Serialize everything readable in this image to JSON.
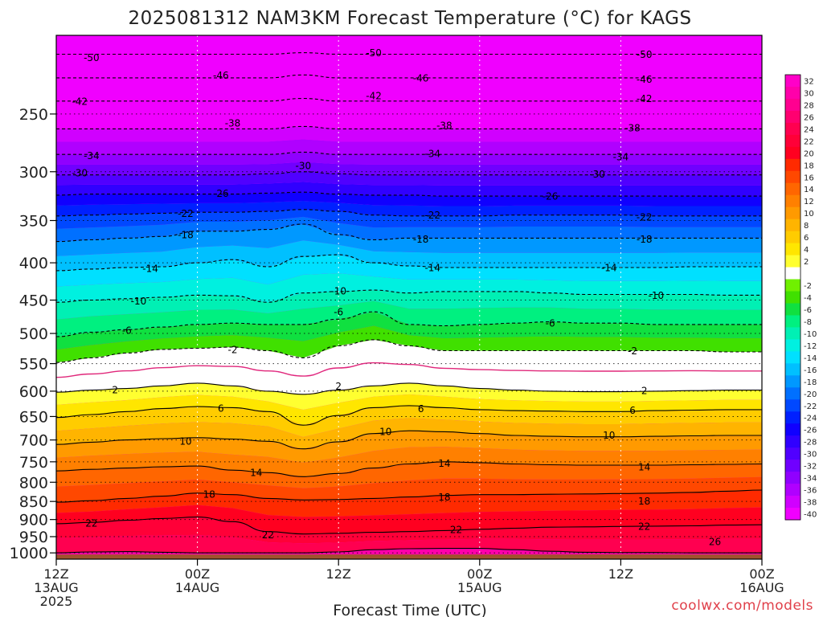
{
  "credit": "coolwx.com/models",
  "colors": {
    "ground": "#a0522d",
    "freezing_line": "#e0287a",
    "scale": [
      {
        "label": "32",
        "color": "#ff00c8"
      },
      {
        "label": "30",
        "color": "#ff00aa"
      },
      {
        "label": "28",
        "color": "#ff0090"
      },
      {
        "label": "26",
        "color": "#ff0070"
      },
      {
        "label": "24",
        "color": "#ff0050"
      },
      {
        "label": "22",
        "color": "#ff0038"
      },
      {
        "label": "20",
        "color": "#ff0020"
      },
      {
        "label": "18",
        "color": "#ff2a00"
      },
      {
        "label": "16",
        "color": "#ff4800"
      },
      {
        "label": "14",
        "color": "#ff6600"
      },
      {
        "label": "12",
        "color": "#ff8000"
      },
      {
        "label": "10",
        "color": "#ff9a00"
      },
      {
        "label": "8",
        "color": "#ffb400"
      },
      {
        "label": "6",
        "color": "#ffcc00"
      },
      {
        "label": "4",
        "color": "#ffe600"
      },
      {
        "label": "2",
        "color": "#ffff30"
      },
      {
        "label": "",
        "color": "#ffffff"
      },
      {
        "label": "-2",
        "color": "#70f000"
      },
      {
        "label": "-4",
        "color": "#40e000"
      },
      {
        "label": "-6",
        "color": "#10e040"
      },
      {
        "label": "-8",
        "color": "#00f080"
      },
      {
        "label": "-10",
        "color": "#00f0b4"
      },
      {
        "label": "-12",
        "color": "#00f0e0"
      },
      {
        "label": "-14",
        "color": "#00e0ff"
      },
      {
        "label": "-16",
        "color": "#00c0ff"
      },
      {
        "label": "-18",
        "color": "#0098ff"
      },
      {
        "label": "-20",
        "color": "#0070ff"
      },
      {
        "label": "-22",
        "color": "#0048ff"
      },
      {
        "label": "-24",
        "color": "#0020ff"
      },
      {
        "label": "-26",
        "color": "#1000ff"
      },
      {
        "label": "-28",
        "color": "#3000ff"
      },
      {
        "label": "-30",
        "color": "#5000ff"
      },
      {
        "label": "-32",
        "color": "#7000ff"
      },
      {
        "label": "-34",
        "color": "#9000ff"
      },
      {
        "label": "-36",
        "color": "#b000ff"
      },
      {
        "label": "-38",
        "color": "#d000ff"
      },
      {
        "label": "-40",
        "color": "#f000ff"
      }
    ]
  },
  "chart_data": {
    "type": "heatmap",
    "title": "2025081312 NAM3KM Forecast Temperature (°C) for KAGS",
    "xlabel": "Forecast Time (UTC)",
    "ylabel": "",
    "x_ticks": [
      {
        "hour": 0,
        "labels": [
          "12Z",
          "13AUG",
          "2025"
        ]
      },
      {
        "hour": 12,
        "labels": [
          "00Z",
          "14AUG"
        ]
      },
      {
        "hour": 24,
        "labels": [
          "12Z"
        ]
      },
      {
        "hour": 36,
        "labels": [
          "00Z",
          "15AUG"
        ]
      },
      {
        "hour": 48,
        "labels": [
          "12Z"
        ]
      },
      {
        "hour": 60,
        "labels": [
          "00Z",
          "16AUG"
        ]
      }
    ],
    "xlim_hours": [
      0,
      60
    ],
    "y_ticks": [
      1000,
      950,
      900,
      850,
      800,
      750,
      700,
      650,
      600,
      550,
      500,
      450,
      400,
      350,
      300,
      250
    ],
    "ylim_hpa": [
      1020,
      195
    ],
    "y_scale": "log-pressure",
    "colorbar_unit": "°C",
    "isotherms": [
      {
        "value": 26,
        "label": "26",
        "p": [
          1000,
          997,
          996,
          998,
          1000,
          1000,
          1000,
          1000,
          997,
          990,
          987,
          986,
          986,
          990,
          995,
          998,
          999,
          999,
          1000,
          1000,
          1000
        ],
        "labels_at": [
          [
            56,
            965
          ]
        ]
      },
      {
        "value": 22,
        "label": "22",
        "p": [
          912,
          908,
          902,
          897,
          893,
          906,
          935,
          942,
          940,
          937,
          935,
          932,
          928,
          925,
          922,
          921,
          920,
          919,
          918,
          916,
          915
        ],
        "labels_at": [
          [
            3,
            910
          ],
          [
            18,
            944
          ],
          [
            34,
            928
          ],
          [
            50,
            919
          ]
        ]
      },
      {
        "value": 18,
        "label": "18",
        "p": [
          852,
          848,
          842,
          836,
          828,
          832,
          842,
          846,
          845,
          842,
          838,
          834,
          832,
          832,
          831,
          830,
          829,
          828,
          826,
          823,
          820
        ],
        "labels_at": [
          [
            13,
            831
          ],
          [
            33,
            838
          ],
          [
            50,
            849
          ]
        ]
      },
      {
        "value": 14,
        "label": "14",
        "p": [
          772,
          768,
          765,
          762,
          760,
          770,
          776,
          786,
          778,
          765,
          755,
          750,
          752,
          755,
          757,
          758,
          758,
          758,
          757,
          756,
          755
        ],
        "labels_at": [
          [
            17,
            775
          ],
          [
            33,
            753
          ],
          [
            50,
            762
          ]
        ]
      },
      {
        "value": 10,
        "label": "10",
        "p": [
          710,
          705,
          700,
          697,
          695,
          698,
          703,
          720,
          704,
          686,
          680,
          682,
          686,
          690,
          692,
          693,
          693,
          692,
          691,
          690,
          690
        ],
        "labels_at": [
          [
            11,
            702
          ],
          [
            28,
            681
          ],
          [
            47,
            689
          ]
        ]
      },
      {
        "value": 6,
        "label": "6",
        "p": [
          652,
          646,
          640,
          634,
          630,
          632,
          640,
          668,
          648,
          632,
          628,
          632,
          636,
          638,
          639,
          640,
          640,
          638,
          637,
          636,
          636
        ],
        "labels_at": [
          [
            14,
            633
          ],
          [
            31,
            634
          ],
          [
            49,
            637
          ]
        ]
      },
      {
        "value": 2,
        "label": "2",
        "p": [
          602,
          598,
          595,
          590,
          585,
          590,
          600,
          606,
          598,
          590,
          585,
          590,
          595,
          598,
          600,
          601,
          601,
          600,
          599,
          598,
          598
        ],
        "labels_at": [
          [
            5,
            597
          ],
          [
            24,
            590
          ],
          [
            50,
            599
          ]
        ]
      },
      {
        "value": -2,
        "label": "-2",
        "p": [
          548,
          540,
          532,
          526,
          524,
          522,
          528,
          540,
          520,
          510,
          520,
          528,
          528,
          528,
          528,
          528,
          528,
          528,
          528,
          530,
          530
        ],
        "labels_at": [
          [
            15,
            526
          ],
          [
            49,
            528
          ]
        ]
      },
      {
        "value": -6,
        "label": "-6",
        "p": [
          505,
          498,
          494,
          490,
          486,
          484,
          486,
          486,
          478,
          467,
          486,
          488,
          486,
          484,
          482,
          484,
          484,
          486,
          486,
          486,
          486
        ],
        "labels_at": [
          [
            6,
            495
          ],
          [
            24,
            467
          ],
          [
            42,
            484
          ]
        ]
      },
      {
        "value": -10,
        "label": "-10",
        "p": [
          453,
          450,
          448,
          446,
          443,
          444,
          453,
          440,
          438,
          436,
          440,
          438,
          438,
          438,
          440,
          442,
          442,
          442,
          442,
          443,
          443
        ],
        "labels_at": [
          [
            7,
            451
          ],
          [
            24,
            437
          ],
          [
            51,
            443
          ]
        ]
      },
      {
        "value": -14,
        "label": "-14",
        "p": [
          410,
          408,
          406,
          405,
          400,
          396,
          405,
          392,
          390,
          400,
          404,
          406,
          406,
          406,
          406,
          406,
          406,
          406,
          405,
          405,
          405
        ],
        "labels_at": [
          [
            8,
            407
          ],
          [
            32,
            406
          ],
          [
            47,
            406
          ]
        ]
      },
      {
        "value": -18,
        "label": "-18",
        "p": [
          374,
          372,
          370,
          368,
          362,
          362,
          360,
          354,
          366,
          372,
          370,
          370,
          370,
          370,
          370,
          370,
          370,
          370,
          370,
          370,
          370
        ],
        "labels_at": [
          [
            11,
            366
          ],
          [
            31,
            371
          ],
          [
            50,
            371
          ]
        ]
      },
      {
        "value": -22,
        "label": "-22",
        "p": [
          345,
          344,
          343,
          342,
          341,
          341,
          340,
          338,
          340,
          344,
          345,
          345,
          345,
          344,
          344,
          344,
          344,
          345,
          345,
          345,
          345
        ],
        "labels_at": [
          [
            11,
            342
          ],
          [
            32,
            344
          ],
          [
            50,
            346
          ]
        ]
      },
      {
        "value": -26,
        "label": "-26",
        "p": [
          323,
          322,
          322,
          322,
          322,
          322,
          321,
          320,
          322,
          323,
          323,
          324,
          324,
          324,
          324,
          324,
          324,
          324,
          324,
          324,
          324
        ],
        "labels_at": [
          [
            14,
            321
          ],
          [
            42,
            324
          ]
        ]
      },
      {
        "value": -30,
        "label": "-30",
        "p": [
          303,
          303,
          303,
          303,
          303,
          303,
          302,
          300,
          302,
          303,
          303,
          303,
          303,
          303,
          303,
          303,
          303,
          303,
          303,
          303,
          303
        ],
        "labels_at": [
          [
            2,
            301
          ],
          [
            21,
            294
          ],
          [
            46,
            302
          ]
        ]
      },
      {
        "value": -34,
        "label": "-34",
        "p": [
          284,
          284,
          284,
          284,
          284,
          284,
          284,
          282,
          284,
          284,
          284,
          284,
          284,
          284,
          284,
          284,
          284,
          284,
          284,
          284,
          284
        ],
        "labels_at": [
          [
            3,
            285
          ],
          [
            32,
            283
          ],
          [
            48,
            286
          ]
        ]
      },
      {
        "value": -38,
        "label": "-38",
        "p": [
          262,
          262,
          262,
          262,
          262,
          262,
          262,
          260,
          262,
          262,
          262,
          262,
          262,
          262,
          262,
          262,
          262,
          262,
          262,
          262,
          262
        ],
        "labels_at": [
          [
            15,
            257
          ],
          [
            33,
            259
          ],
          [
            49,
            261
          ]
        ]
      },
      {
        "value": -42,
        "label": "-42",
        "p": [
          240,
          240,
          240,
          240,
          240,
          240,
          240,
          238,
          240,
          240,
          240,
          240,
          240,
          240,
          240,
          240,
          240,
          240,
          240,
          240,
          240
        ],
        "labels_at": [
          [
            2,
            240
          ],
          [
            27,
            236
          ],
          [
            50,
            238
          ]
        ]
      },
      {
        "value": -46,
        "label": "-46",
        "p": [
          223,
          223,
          223,
          223,
          223,
          223,
          223,
          221,
          223,
          223,
          223,
          223,
          223,
          223,
          223,
          223,
          223,
          223,
          223,
          223,
          223
        ],
        "labels_at": [
          [
            14,
            221
          ],
          [
            31,
            223
          ],
          [
            50,
            224
          ]
        ]
      },
      {
        "value": -50,
        "label": "-50",
        "p": [
          207,
          207,
          207,
          207,
          207,
          207,
          207,
          206,
          207,
          207,
          207,
          207,
          207,
          207,
          207,
          207,
          207,
          207,
          207,
          207,
          207
        ],
        "labels_at": [
          [
            3,
            209
          ],
          [
            27,
            206
          ],
          [
            50,
            207
          ]
        ]
      }
    ]
  }
}
